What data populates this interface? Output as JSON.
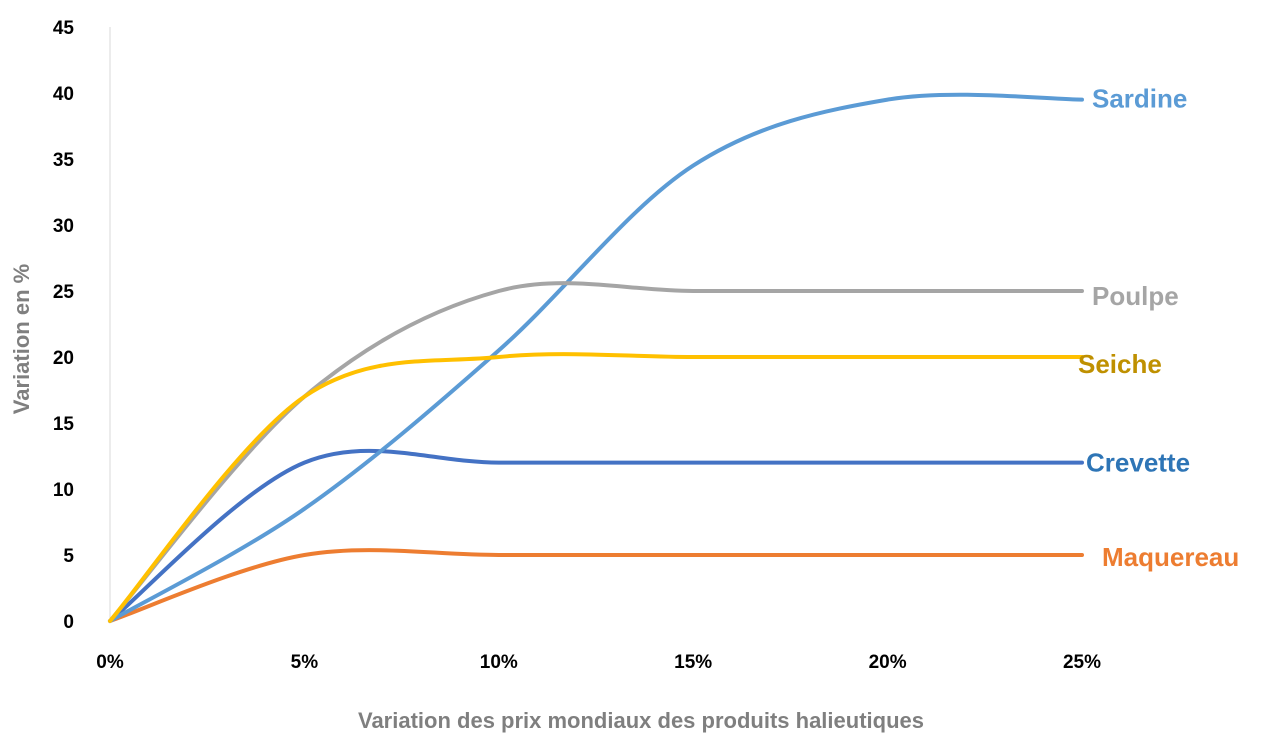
{
  "chart_data": {
    "type": "line",
    "title": "",
    "xlabel": "Variation des prix mondiaux des produits halieutiques",
    "ylabel": "Variation en %",
    "x": [
      0,
      5,
      10,
      15,
      20,
      25
    ],
    "x_tick_labels": [
      "0%",
      "5%",
      "10%",
      "15%",
      "20%",
      "25%"
    ],
    "ylim": [
      0,
      45
    ],
    "y_ticks": [
      0,
      5,
      10,
      15,
      20,
      25,
      30,
      35,
      40,
      45
    ],
    "grid": false,
    "smooth": true,
    "series": [
      {
        "name": "Sardine",
        "values": [
          0,
          8.5,
          20.5,
          34.5,
          39.5,
          39.5
        ],
        "color": "#5b9bd5",
        "label_color": "#5b9bd5"
      },
      {
        "name": "Poulpe",
        "values": [
          0,
          17,
          25,
          25,
          25,
          25
        ],
        "color": "#a5a5a5",
        "label_color": "#a5a5a5"
      },
      {
        "name": "Seiche",
        "values": [
          0,
          17,
          20,
          20,
          20,
          20
        ],
        "color": "#ffc000",
        "label_color": "#bf9000"
      },
      {
        "name": "Crevette",
        "values": [
          0,
          12,
          12,
          12,
          12,
          12
        ],
        "color": "#4472c4",
        "label_color": "#2e75b6"
      },
      {
        "name": "Maquereau",
        "values": [
          0,
          5,
          5,
          5,
          5,
          5
        ],
        "color": "#ed7d31",
        "label_color": "#ed7d31"
      }
    ]
  }
}
